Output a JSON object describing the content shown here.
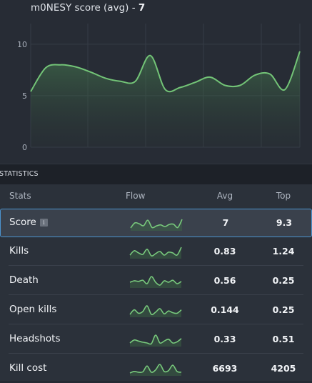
{
  "chart": {
    "title_label": "m0NESY score (avg)",
    "title_separator": " - ",
    "title_value": "7"
  },
  "chart_data": {
    "type": "area",
    "title": "m0NESY score (avg) - 7",
    "y_ticks": [
      "0",
      "5",
      "10"
    ],
    "ylim": [
      0,
      12
    ],
    "grid": true,
    "values": [
      5.4,
      7.7,
      8.0,
      7.8,
      7.3,
      6.7,
      6.4,
      6.4,
      8.9,
      5.6,
      5.8,
      6.3,
      6.8,
      6.0,
      6.0,
      7.0,
      7.1,
      5.6,
      9.3
    ],
    "line_color": "#73c477",
    "fill_color": "#3d6a45"
  },
  "statistics": {
    "header": "STATISTICS",
    "columns": {
      "stats": "Stats",
      "flow": "Flow",
      "avg": "Avg",
      "top": "Top"
    },
    "info_glyph": "i",
    "rows": [
      {
        "name": "Score",
        "avg": "7",
        "top": "9.3",
        "selected": true,
        "info_icon": true,
        "flow": [
          5.4,
          7.7,
          7.3,
          6.4,
          8.9,
          5.6,
          6.3,
          6.8,
          6.0,
          7.0,
          7.1,
          5.6,
          9.3
        ]
      },
      {
        "name": "Kills",
        "avg": "0.83",
        "top": "1.24",
        "flow": [
          0.7,
          1.0,
          0.85,
          0.75,
          1.1,
          0.65,
          0.8,
          0.95,
          0.7,
          0.9,
          0.85,
          0.7,
          1.24
        ]
      },
      {
        "name": "Death",
        "avg": "0.56",
        "top": "0.25",
        "flow": [
          0.55,
          0.6,
          0.58,
          0.62,
          0.5,
          0.75,
          0.55,
          0.45,
          0.6,
          0.55,
          0.62,
          0.5,
          0.58
        ]
      },
      {
        "name": "Open kills",
        "avg": "0.144",
        "top": "0.25",
        "flow": [
          0.1,
          0.18,
          0.12,
          0.15,
          0.25,
          0.1,
          0.14,
          0.2,
          0.11,
          0.16,
          0.13,
          0.12,
          0.18
        ]
      },
      {
        "name": "Headshots",
        "avg": "0.33",
        "top": "0.51",
        "flow": [
          0.3,
          0.38,
          0.35,
          0.32,
          0.3,
          0.28,
          0.51,
          0.3,
          0.35,
          0.4,
          0.3,
          0.33,
          0.42
        ]
      },
      {
        "name": "Kill cost",
        "avg": "6693",
        "top": "4205",
        "flow": [
          6500,
          6700,
          6600,
          6650,
          7400,
          6600,
          6900,
          7600,
          6700,
          6800,
          7500,
          6700,
          6600
        ]
      }
    ]
  }
}
